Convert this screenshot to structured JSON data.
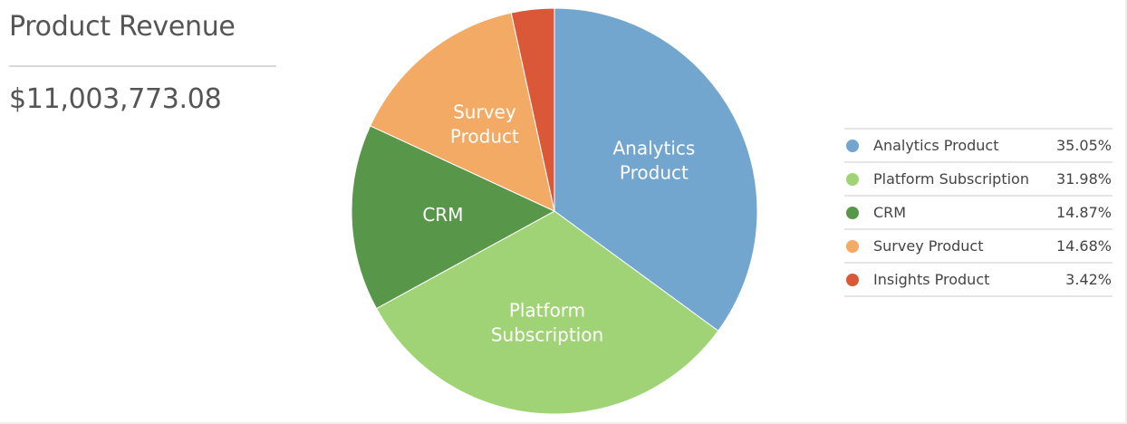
{
  "header": {
    "title": "Product Revenue",
    "total": "$11,003,773.08"
  },
  "chart_data": {
    "type": "pie",
    "categories": [
      "Analytics Product",
      "Platform Subscription",
      "CRM",
      "Survey Product",
      "Insights Product"
    ],
    "values": [
      35.05,
      31.98,
      14.87,
      14.68,
      3.42
    ],
    "percent_labels": [
      "35.05%",
      "31.98%",
      "14.87%",
      "14.68%",
      "3.42%"
    ],
    "slice_labels": [
      [
        "Analytics",
        "Product"
      ],
      [
        "Platform",
        "Subscription"
      ],
      [
        "CRM"
      ],
      [
        "Survey",
        "Product"
      ],
      []
    ],
    "colors": [
      "#73a6cf",
      "#a0d376",
      "#58974a",
      "#f2aa65",
      "#da5737"
    ],
    "legend_position": "right"
  }
}
